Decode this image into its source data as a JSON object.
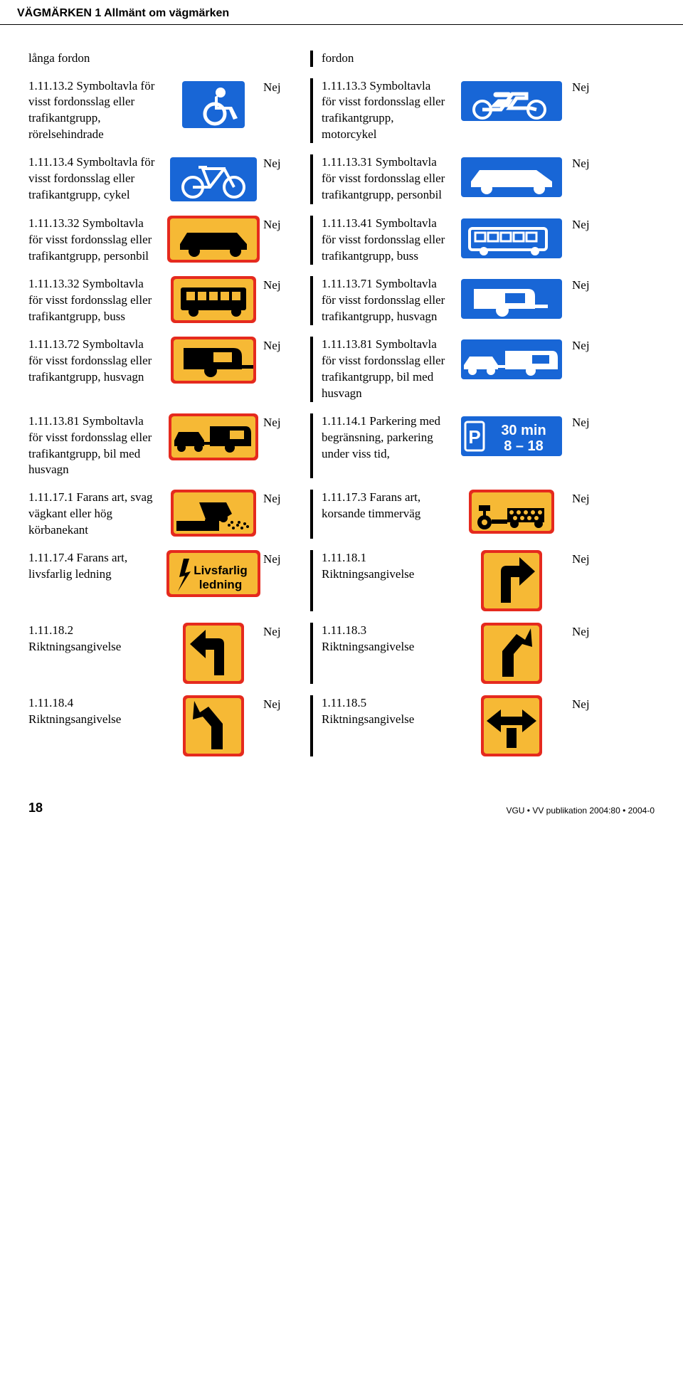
{
  "header": {
    "title": "VÄGMÄRKEN 1 Allmänt om vägmärken"
  },
  "footer": {
    "pagenum": "18",
    "pub": "VGU • VV publikation 2004:80 • 2004-0"
  },
  "colors": {
    "blue": "#1866d6",
    "white": "#ffffff",
    "yellow": "#f6b935",
    "red": "#e52a1e",
    "black": "#000000"
  },
  "nej": "Nej",
  "rows": [
    {
      "left": {
        "text": "långa fordon",
        "sign": "none"
      },
      "right": {
        "text": "fordon",
        "sign": "none"
      },
      "show_nej": false
    },
    {
      "left": {
        "text": "1.11.13.2 Symboltavla för visst fordonsslag eller trafikantgrupp, rörelsehindrade",
        "sign": "blue_wheelchair"
      },
      "right": {
        "text": "1.11.13.3 Symboltavla för visst fordonsslag eller trafikantgrupp, motorcykel",
        "sign": "blue_motorcycle"
      }
    },
    {
      "left": {
        "text": "1.11.13.4 Symboltavla för visst fordonsslag eller trafikantgrupp, cykel",
        "sign": "blue_bicycle"
      },
      "right": {
        "text": "1.11.13.31 Symboltavla för visst fordonsslag eller trafikantgrupp, personbil",
        "sign": "blue_car"
      }
    },
    {
      "left": {
        "text": "1.11.13.32 Symboltavla för visst fordonsslag eller trafikantgrupp, personbil",
        "sign": "yellow_car"
      },
      "right": {
        "text": "1.11.13.41 Symboltavla för visst fordonsslag eller trafikantgrupp, buss",
        "sign": "blue_bus"
      }
    },
    {
      "left": {
        "text": "1.11.13.32 Symboltavla för visst fordonsslag eller trafikantgrupp, buss",
        "sign": "yellow_bus"
      },
      "right": {
        "text": "1.11.13.71 Symboltavla för visst fordonsslag eller trafikantgrupp, husvagn",
        "sign": "blue_caravan"
      }
    },
    {
      "left": {
        "text": "1.11.13.72 Symboltavla för visst fordonsslag eller trafikantgrupp, husvagn",
        "sign": "yellow_caravan"
      },
      "right": {
        "text": "1.11.13.81 Symboltavla för visst fordonsslag eller trafikantgrupp, bil med husvagn",
        "sign": "blue_car_caravan"
      }
    },
    {
      "left": {
        "text": "1.11.13.81 Symboltavla för visst fordonsslag eller trafikantgrupp, bil med husvagn",
        "sign": "yellow_car_caravan"
      },
      "right": {
        "text": "1.11.14.1 Parkering med begränsning, parkering under viss tid,",
        "sign": "blue_parking_time",
        "lines": [
          "30 min",
          "8 – 18"
        ]
      }
    },
    {
      "left": {
        "text": "1.11.17.1 Farans art, svag vägkant eller hög körbanekant",
        "sign": "yellow_soft_edge"
      },
      "right": {
        "text": "1.11.17.3 Farans art, korsande timmerväg",
        "sign": "yellow_timber"
      }
    },
    {
      "left": {
        "text": "1.11.17.4 Farans art, livsfarlig ledning",
        "sign": "yellow_livsfarlig",
        "lines": [
          "Livsfarlig",
          "ledning"
        ]
      },
      "right": {
        "text": "1.11.18.1 Riktningsangivelse",
        "sign": "yellow_arrow_right_up"
      }
    },
    {
      "left": {
        "text": "1.11.18.2 Riktningsangivelse",
        "sign": "yellow_arrow_left_up"
      },
      "right": {
        "text": "1.11.18.3 Riktningsangivelse",
        "sign": "yellow_arrow_diag_right"
      }
    },
    {
      "left": {
        "text": "1.11.18.4 Riktningsangivelse",
        "sign": "yellow_arrow_diag_left"
      },
      "right": {
        "text": "1.11.18.5 Riktningsangivelse",
        "sign": "yellow_arrow_both"
      }
    }
  ]
}
